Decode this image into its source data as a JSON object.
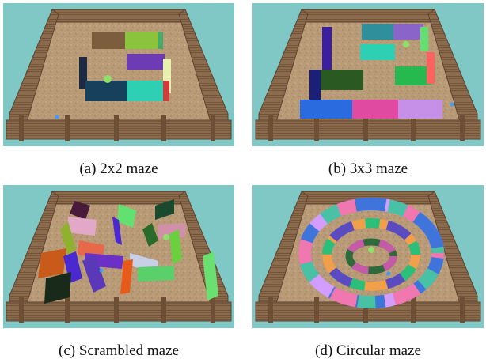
{
  "colors": {
    "sky": "#7fc8c5",
    "floor": "#b79a76",
    "fence": "#8a6a49",
    "fence_dark": "#5c4330"
  },
  "panels": [
    {
      "id": "a",
      "caption": "(a) 2x2 maze"
    },
    {
      "id": "b",
      "caption": "(b) 3x3 maze"
    },
    {
      "id": "c",
      "caption": "(c) Scrambled maze"
    },
    {
      "id": "d",
      "caption": "(d) Circular maze"
    }
  ]
}
